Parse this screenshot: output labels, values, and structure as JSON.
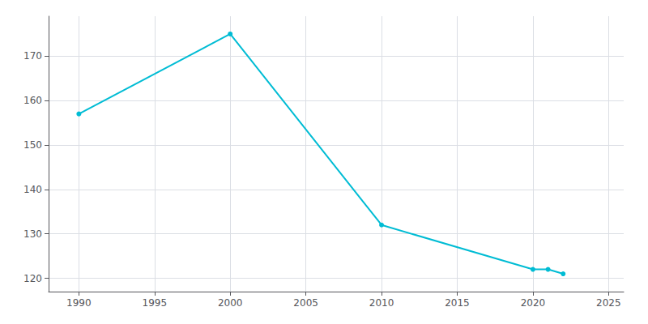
{
  "chart_data": {
    "type": "line",
    "x": [
      1990,
      2000,
      2010,
      2020,
      2021,
      2022
    ],
    "values": [
      157,
      175,
      132,
      122,
      122,
      121
    ],
    "color": "#00BCD4",
    "marker": "circle",
    "xlim": [
      1988,
      2026
    ],
    "ylim": [
      117,
      179
    ],
    "xticks": [
      1990,
      1995,
      2000,
      2005,
      2010,
      2015,
      2020,
      2025
    ],
    "yticks": [
      120,
      130,
      140,
      150,
      160,
      170
    ],
    "grid": true
  }
}
